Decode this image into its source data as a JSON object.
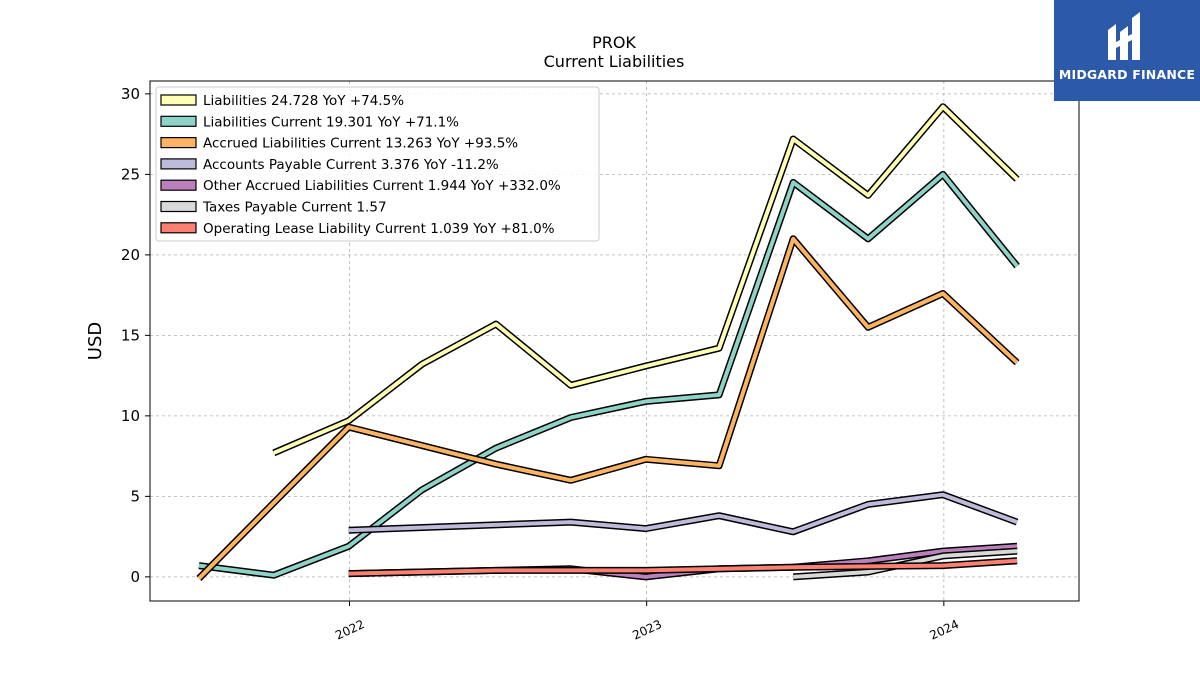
{
  "brand": {
    "name": "MIDGARD FINANCE",
    "background": "#2d5aa8"
  },
  "chart_data": {
    "type": "line",
    "title": "PROK",
    "subtitle": "Current  Liabilities",
    "ylabel": "USD",
    "xlabel": "",
    "ylim": [
      -1.5,
      30.8
    ],
    "xlim": [
      "2021-05-01",
      "2024-06-15"
    ],
    "yticks": [
      0,
      5,
      10,
      15,
      20,
      25,
      30
    ],
    "xticks": [
      {
        "label": "2022",
        "date": "2022-01-01"
      },
      {
        "label": "2023",
        "date": "2023-01-01"
      },
      {
        "label": "2024",
        "date": "2024-01-01"
      }
    ],
    "grid": true,
    "legend_position": "top-left",
    "series": [
      {
        "name": "Liabilities",
        "legend_label": "Liabilities  24.728 YoY +74.5%",
        "color": "#ffffb3",
        "points": [
          [
            "2021-09-30",
            7.7
          ],
          [
            "2021-12-31",
            9.7
          ],
          [
            "2022-03-31",
            13.2
          ],
          [
            "2022-06-30",
            15.7
          ],
          [
            "2022-09-30",
            11.9
          ],
          [
            "2022-12-31",
            13.1
          ],
          [
            "2023-03-31",
            14.2
          ],
          [
            "2023-06-30",
            27.2
          ],
          [
            "2023-09-30",
            23.7
          ],
          [
            "2023-12-31",
            29.2
          ],
          [
            "2024-03-31",
            24.7
          ]
        ]
      },
      {
        "name": "Liabilities Current",
        "legend_label": "Liabilities Current  19.301 YoY +71.1%",
        "color": "#8dd3c7",
        "points": [
          [
            "2021-06-30",
            0.7
          ],
          [
            "2021-09-30",
            0.1
          ],
          [
            "2021-12-31",
            1.9
          ],
          [
            "2022-03-31",
            5.4
          ],
          [
            "2022-06-30",
            8.0
          ],
          [
            "2022-09-30",
            9.9
          ],
          [
            "2022-12-31",
            10.9
          ],
          [
            "2023-03-31",
            11.3
          ],
          [
            "2023-06-30",
            24.5
          ],
          [
            "2023-09-30",
            21.0
          ],
          [
            "2023-12-31",
            25.0
          ],
          [
            "2024-03-31",
            19.3
          ]
        ]
      },
      {
        "name": "Accrued Liabilities Current",
        "legend_label": "Accrued Liabilities Current  13.263 YoY +93.5%",
        "color": "#fdb462",
        "points": [
          [
            "2021-06-30",
            -0.1
          ],
          [
            "2021-12-31",
            9.3
          ],
          [
            "2022-06-30",
            7.0
          ],
          [
            "2022-09-30",
            6.0
          ],
          [
            "2022-12-31",
            7.3
          ],
          [
            "2023-03-31",
            6.9
          ],
          [
            "2023-06-30",
            21.0
          ],
          [
            "2023-09-30",
            15.5
          ],
          [
            "2023-12-31",
            17.6
          ],
          [
            "2024-03-31",
            13.3
          ]
        ]
      },
      {
        "name": "Accounts Payable Current",
        "legend_label": "Accounts Payable Current  3.376 YoY -11.2%",
        "color": "#bebada",
        "points": [
          [
            "2021-12-31",
            2.9
          ],
          [
            "2022-09-30",
            3.4
          ],
          [
            "2022-12-31",
            3.0
          ],
          [
            "2023-03-31",
            3.8
          ],
          [
            "2023-06-30",
            2.8
          ],
          [
            "2023-09-30",
            4.5
          ],
          [
            "2023-12-31",
            5.1
          ],
          [
            "2024-03-31",
            3.4
          ]
        ]
      },
      {
        "name": "Other Accrued Liabilities Current",
        "legend_label": "Other Accrued Liabilities Current  1.944 YoY +332.0%",
        "color": "#bc80bd",
        "points": [
          [
            "2021-12-31",
            0.2
          ],
          [
            "2022-09-30",
            0.5
          ],
          [
            "2022-12-31",
            0.0
          ],
          [
            "2023-03-31",
            0.5
          ],
          [
            "2023-06-30",
            0.6
          ],
          [
            "2023-09-30",
            1.0
          ],
          [
            "2023-12-31",
            1.6
          ],
          [
            "2024-03-31",
            1.9
          ]
        ]
      },
      {
        "name": "Taxes Payable Current",
        "legend_label": "Taxes Payable Current  1.57",
        "color": "#d9d9d9",
        "points": [
          [
            "2023-06-30",
            0.0
          ],
          [
            "2023-09-30",
            0.3
          ],
          [
            "2023-12-31",
            1.3
          ],
          [
            "2024-03-31",
            1.6
          ]
        ]
      },
      {
        "name": "Operating Lease Liability Current",
        "legend_label": "Operating Lease Liability Current  1.039 YoY +81.0%",
        "color": "#fb8072",
        "points": [
          [
            "2021-12-31",
            0.2
          ],
          [
            "2022-06-30",
            0.4
          ],
          [
            "2022-12-31",
            0.4
          ],
          [
            "2023-06-30",
            0.6
          ],
          [
            "2023-12-31",
            0.7
          ],
          [
            "2024-03-31",
            1.0
          ]
        ]
      }
    ]
  }
}
